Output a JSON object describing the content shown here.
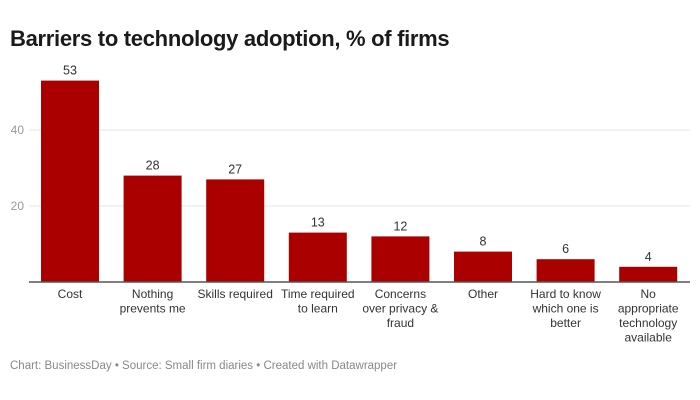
{
  "title": "Barriers to technology adoption, % of firms",
  "footer": "Chart: BusinessDay • Source: Small firm diaries  • Created with Datawrapper",
  "colors": {
    "bar": "#aa0000",
    "grid": "#e6e6e6",
    "axis": "#555555"
  },
  "chart_data": {
    "type": "bar",
    "title": "Barriers to technology adoption, % of firms",
    "categories": [
      [
        "Cost"
      ],
      [
        "Nothing",
        "prevents me"
      ],
      [
        "Skills required"
      ],
      [
        "Time required",
        "to learn"
      ],
      [
        "Concerns",
        "over privacy &",
        "fraud"
      ],
      [
        "Other"
      ],
      [
        "Hard to know",
        "which one is",
        "better"
      ],
      [
        "No",
        "appropriate",
        "technology",
        "available"
      ]
    ],
    "values": [
      53,
      28,
      27,
      13,
      12,
      8,
      6,
      4
    ],
    "yticks": [
      20,
      40
    ],
    "ylim": [
      0,
      55
    ],
    "xlabel": "",
    "ylabel": "",
    "grid": true
  }
}
